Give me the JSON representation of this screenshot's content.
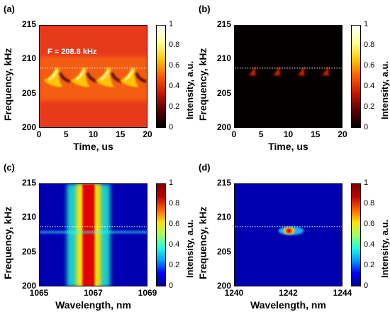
{
  "chart_data": [
    {
      "panel": "(a)",
      "type": "heatmap",
      "colormap": "hot",
      "background": "#e83a1a",
      "xlabel": "Time, us",
      "ylabel": "Frequency, kHz",
      "xlim": [
        0,
        20
      ],
      "ylim": [
        200,
        215
      ],
      "xticks": [
        "0",
        "5",
        "10",
        "15",
        "20"
      ],
      "yticks": [
        "200",
        "205",
        "210",
        "215"
      ],
      "colorbar": {
        "label": "Intensity, a.u.",
        "ticks": [
          "0",
          "0.2",
          "0.4",
          "0.6",
          "0.8",
          "1"
        ]
      },
      "annotation": "F = 208.8 kHz",
      "reference_line_khz": 208.8,
      "bursts_time_us": [
        3.0,
        8.0,
        12.5,
        17.0
      ],
      "burst_peak_freq_khz": 207.5,
      "burst_peak_intensity": 1.0
    },
    {
      "panel": "(b)",
      "type": "heatmap",
      "colormap": "hot",
      "background": "#050000",
      "xlabel": "Time, us",
      "ylabel": "Frequency, kHz",
      "xlim": [
        0,
        20
      ],
      "ylim": [
        200,
        215
      ],
      "xticks": [
        "0",
        "5",
        "10",
        "15",
        "20"
      ],
      "yticks": [
        "200",
        "205",
        "210",
        "215"
      ],
      "colorbar": {
        "label": "Intensity, a.u.",
        "ticks": [
          "0",
          "0.2",
          "0.4",
          "0.6",
          "0.8",
          "1"
        ]
      },
      "reference_line_khz": 208.8,
      "bursts_time_us": [
        3.5,
        8.0,
        12.5,
        17.0
      ],
      "burst_peak_freq_khz": 208.3,
      "burst_peak_intensity": 0.4
    },
    {
      "panel": "(c)",
      "type": "heatmap",
      "colormap": "jet",
      "background": "#0000b0",
      "xlabel": "Wavelength, nm",
      "ylabel": "Frequency, kHz",
      "xlim": [
        1065,
        1069
      ],
      "ylim": [
        200,
        215
      ],
      "xticks": [
        "1065",
        "1067",
        "1069"
      ],
      "yticks": [
        "200",
        "205",
        "210",
        "215"
      ],
      "colorbar": {
        "label": "Intensity, a.u.",
        "ticks": [
          "0",
          "0.2",
          "0.4",
          "0.6",
          "0.8",
          "1"
        ]
      },
      "reference_line_khz": 208.8,
      "band_center_nm": 1066.8,
      "band_width_nm": 0.5,
      "band_intensity": 0.95,
      "dip_freq_khz": 208.0
    },
    {
      "panel": "(d)",
      "type": "heatmap",
      "colormap": "jet",
      "background": "#0000b0",
      "xlabel": "Wavelength, nm",
      "ylabel": "Frequency, kHz",
      "xlim": [
        1240,
        1244
      ],
      "ylim": [
        200,
        215
      ],
      "xticks": [
        "1240",
        "1242",
        "1244"
      ],
      "yticks": [
        "200",
        "205",
        "210",
        "215"
      ],
      "colorbar": {
        "label": "Intensity, a.u.",
        "ticks": [
          "0",
          "0.2",
          "0.4",
          "0.6",
          "0.8",
          "1"
        ]
      },
      "reference_line_khz": 208.8,
      "spot_center_nm": 1242.0,
      "spot_center_khz": 208.2,
      "spot_intensity": 1.0
    }
  ]
}
